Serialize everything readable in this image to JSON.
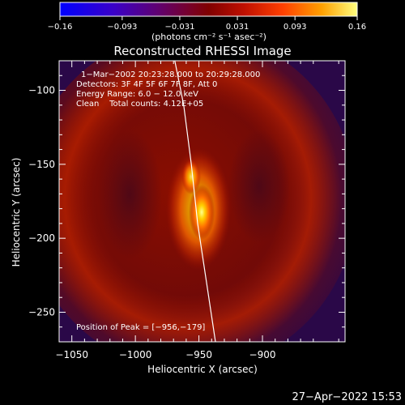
{
  "chart_data": {
    "type": "heatmap",
    "title": "Reconstructed RHESSI Image",
    "xlabel": "Heliocentric X (arcsec)",
    "ylabel": "Heliocentric Y (arcsec)",
    "xlim": [
      -1060,
      -835
    ],
    "ylim": [
      -270,
      -80
    ],
    "x_ticks": [
      -1050,
      -1000,
      -950,
      -900
    ],
    "x_tick_labels": [
      "−1050",
      "−1000",
      "−950",
      "−900"
    ],
    "y_ticks": [
      -250,
      -200,
      -150,
      -100
    ],
    "y_tick_labels": [
      "−250",
      "−200",
      "−150",
      "−100"
    ],
    "colorbar": {
      "min": -0.16,
      "max": 0.16,
      "tick_values": [
        -0.16,
        -0.093,
        -0.031,
        0.031,
        0.093,
        0.16
      ],
      "tick_labels": [
        "−0.16",
        "−0.093",
        "−0.031",
        "0.031",
        "0.093",
        "0.16"
      ],
      "unit_label": "(photons cm⁻² s⁻¹ asec⁻²)"
    },
    "annotations": [
      "1−Mar−2002 20:23:28.000 to 20:29:28.000",
      "Detectors: 3F 4F 5F 6F 7F 8F, Att 0",
      "Energy Range: 6.0 − 12.0 keV",
      "Clean    Total counts: 4.12E+05"
    ],
    "peak_label": "Position of Peak = [−956,−179]",
    "peak": [
      -956,
      -179
    ],
    "limb_curve": [
      [
        -969,
        -80
      ],
      [
        -962,
        -110
      ],
      [
        -956,
        -150
      ],
      [
        -951,
        -190
      ],
      [
        -944,
        -230
      ],
      [
        -937,
        -270
      ]
    ],
    "grid": false
  },
  "footer": {
    "timestamp": "27−Apr−2022 15:53"
  }
}
